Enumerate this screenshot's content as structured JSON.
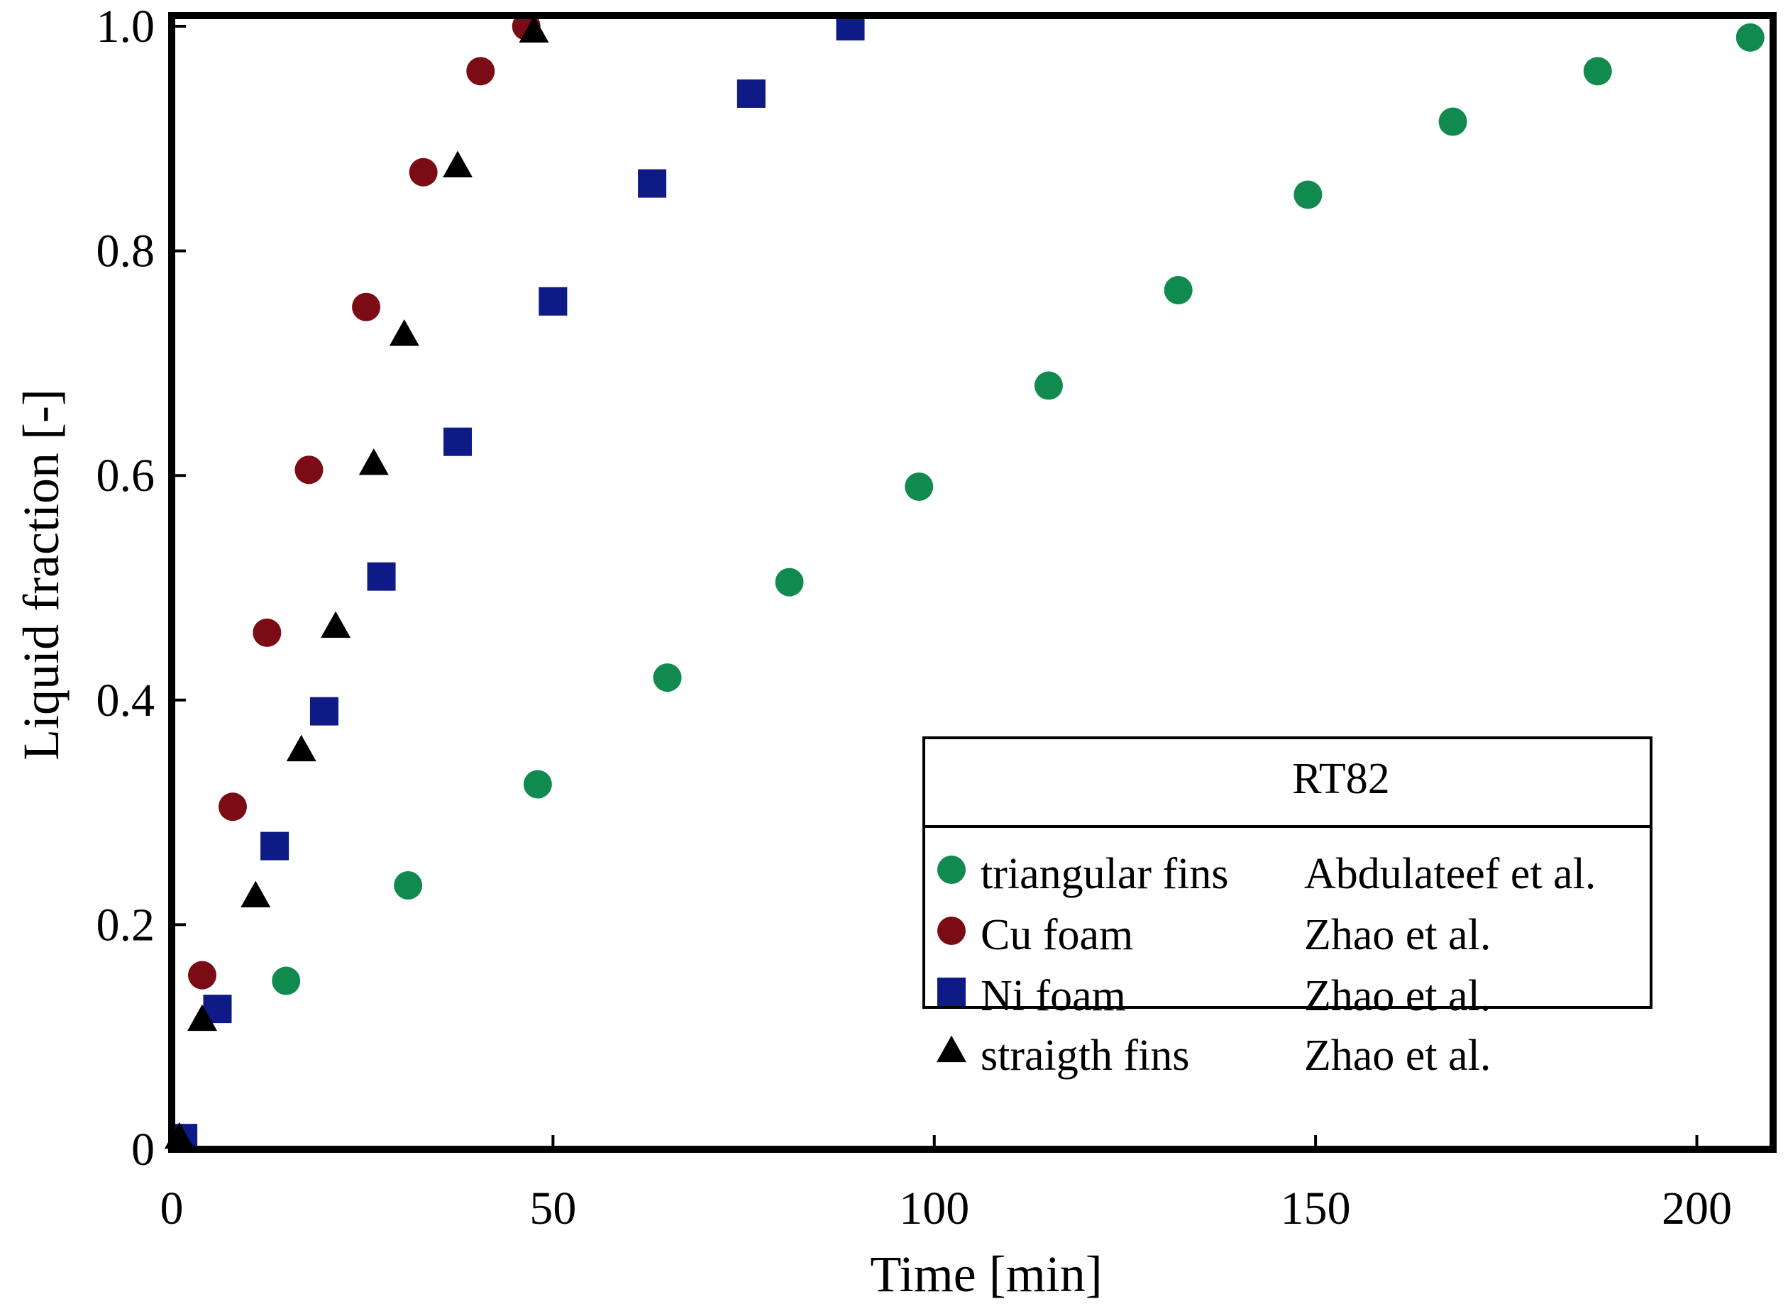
{
  "chart_data": {
    "type": "scatter",
    "xlabel": "Time [min]",
    "ylabel": "Liquid fraction [-]",
    "xlim": [
      0,
      210
    ],
    "ylim": [
      0,
      1.0
    ],
    "xticks": [
      0,
      50,
      100,
      150,
      200
    ],
    "xtick_labels": [
      "0",
      "50",
      "100",
      "150",
      "200"
    ],
    "yticks": [
      0,
      0.2,
      0.4,
      0.6,
      0.8,
      1.0
    ],
    "ytick_labels": [
      "0",
      "0.2",
      "0.4",
      "0.6",
      "0.8",
      "1.0"
    ],
    "grid": false,
    "legend": {
      "title": "RT82",
      "position": "bottom-right"
    },
    "series": [
      {
        "name": "triangular fins",
        "source": "Abdulateef et al.",
        "marker": "circle",
        "color": "#118a4f",
        "points": [
          [
            1.5,
            0.01
          ],
          [
            15,
            0.15
          ],
          [
            31,
            0.235
          ],
          [
            48,
            0.325
          ],
          [
            65,
            0.42
          ],
          [
            81,
            0.505
          ],
          [
            98,
            0.59
          ],
          [
            115,
            0.68
          ],
          [
            132,
            0.765
          ],
          [
            149,
            0.85
          ],
          [
            168,
            0.915
          ],
          [
            187,
            0.96
          ],
          [
            207,
            0.99
          ]
        ]
      },
      {
        "name": "Cu foam",
        "source": "Zhao et al.",
        "marker": "circle",
        "color": "#7b0c15",
        "points": [
          [
            4,
            0.155
          ],
          [
            8,
            0.305
          ],
          [
            12.5,
            0.46
          ],
          [
            18,
            0.605
          ],
          [
            25.5,
            0.75
          ],
          [
            33,
            0.87
          ],
          [
            40.5,
            0.96
          ],
          [
            46.5,
            1.0
          ]
        ]
      },
      {
        "name": "Ni foam",
        "source": "Zhao et al.",
        "marker": "square",
        "color": "#0e1a86",
        "points": [
          [
            1.5,
            0.01
          ],
          [
            6,
            0.125
          ],
          [
            13.5,
            0.27
          ],
          [
            20,
            0.39
          ],
          [
            27.5,
            0.51
          ],
          [
            37.5,
            0.63
          ],
          [
            50,
            0.755
          ],
          [
            63,
            0.86
          ],
          [
            76,
            0.94
          ],
          [
            89,
            1.0
          ]
        ]
      },
      {
        "name": "straigth fins",
        "source": "Zhao et al.",
        "marker": "triangle",
        "color": "#000000",
        "points": [
          [
            1,
            0.01
          ],
          [
            4,
            0.115
          ],
          [
            11,
            0.225
          ],
          [
            17,
            0.355
          ],
          [
            21.5,
            0.465
          ],
          [
            26.5,
            0.61
          ],
          [
            30.5,
            0.725
          ],
          [
            37.5,
            0.875
          ],
          [
            47.5,
            0.995
          ]
        ]
      }
    ]
  }
}
